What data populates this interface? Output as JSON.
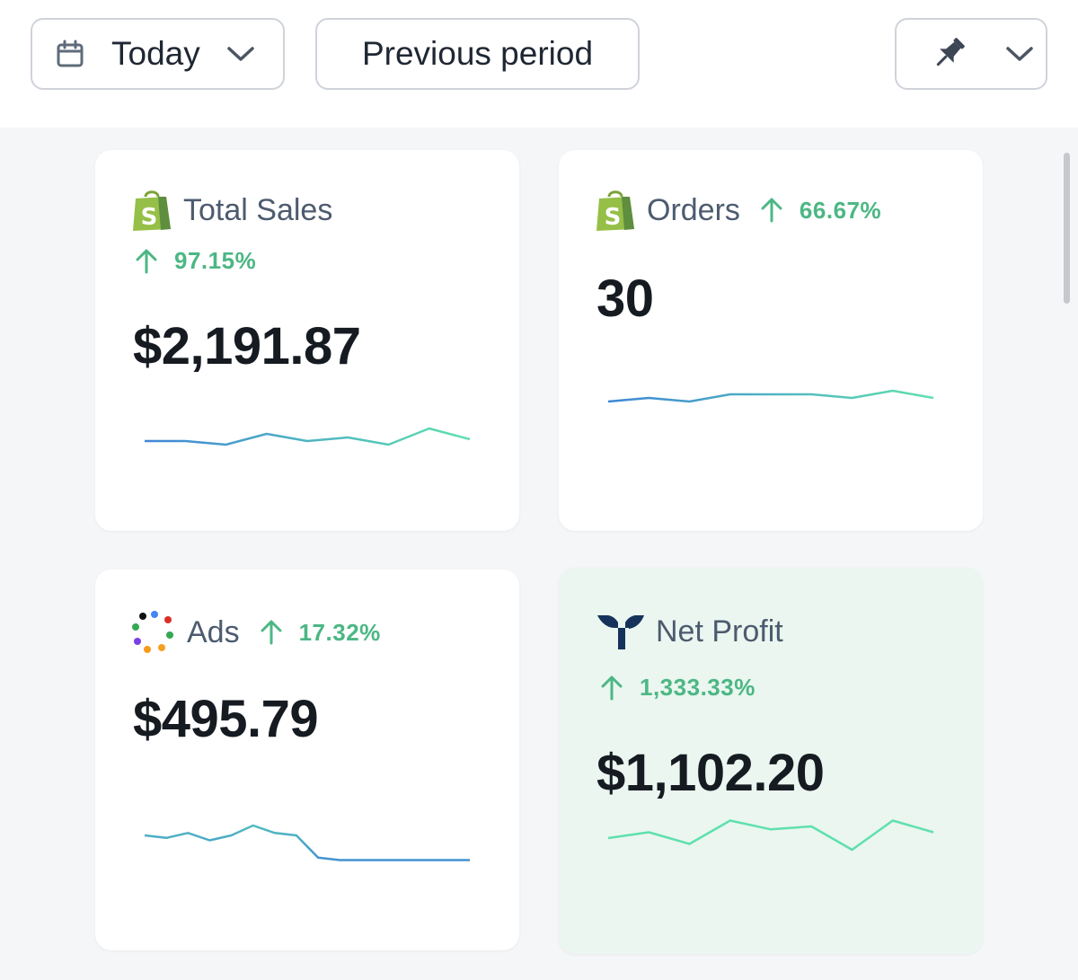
{
  "toolbar": {
    "date_range_label": "Today",
    "compare_label": "Previous period"
  },
  "colors": {
    "accent_green": "#4cb784",
    "spark_start": "#3f86d6",
    "spark_end": "#5fe0ae",
    "shopify_green": "#95bf47",
    "netprofit_navy": "#15335a"
  },
  "cards": [
    {
      "title": "Total Sales",
      "icon": "shopify-icon",
      "change": "97.15%",
      "value": "$2,191.87",
      "sparkline": [
        52,
        52,
        54,
        48,
        52,
        50,
        54,
        45,
        51
      ]
    },
    {
      "title": "Orders",
      "icon": "shopify-icon",
      "change": "66.67%",
      "value": "30",
      "sparkline": [
        55,
        53,
        55,
        51,
        51,
        51,
        53,
        49,
        53
      ]
    },
    {
      "title": "Ads",
      "icon": "ads-dots-icon",
      "change": "17.32%",
      "value": "$495.79",
      "sparkline": [
        64,
        65,
        63,
        66,
        64,
        60,
        63,
        64,
        73,
        74,
        74,
        74,
        74,
        74,
        74,
        74
      ]
    },
    {
      "title": "Net Profit",
      "icon": "triple-whale-icon",
      "change": "1,333.33%",
      "value": "$1,102.20",
      "sparkline": [
        48,
        46,
        50,
        42,
        45,
        44,
        52,
        42,
        46
      ]
    }
  ]
}
